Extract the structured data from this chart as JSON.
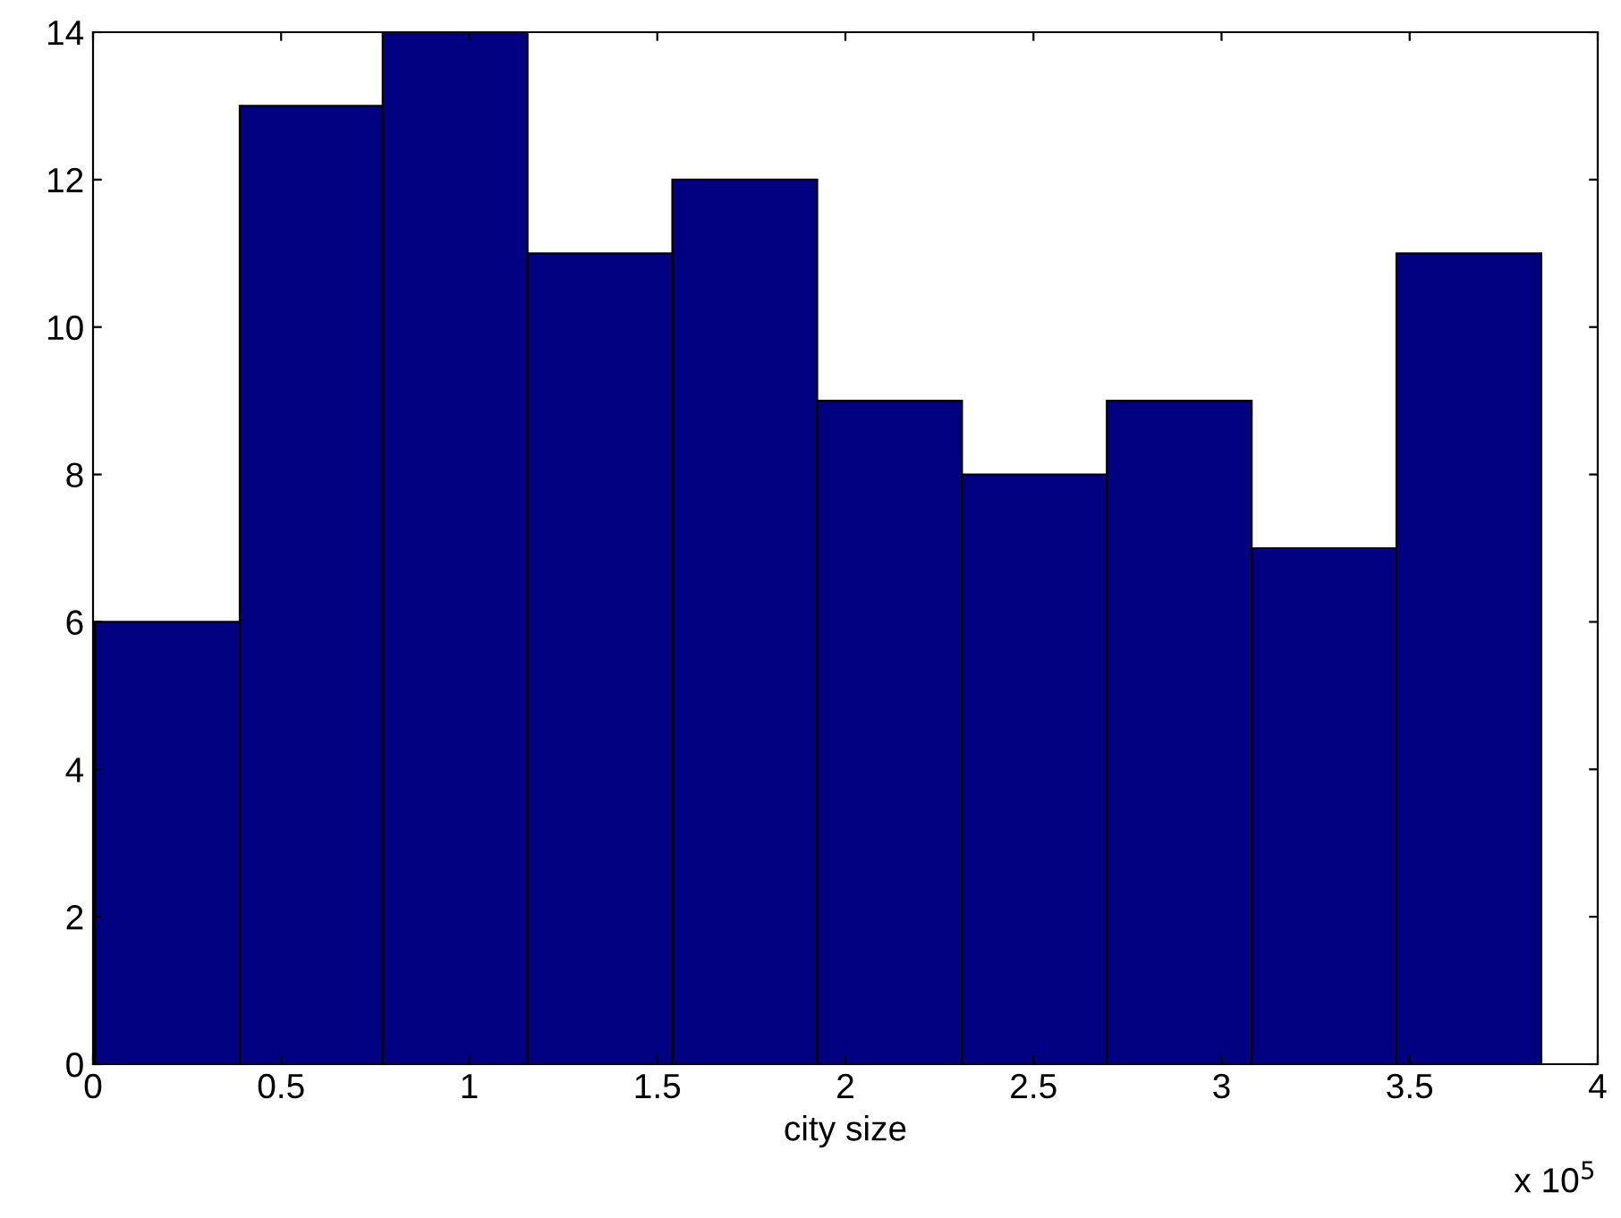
{
  "chart_data": {
    "type": "histogram",
    "xlabel": "city size",
    "bins": [
      0.005,
      0.39,
      0.77,
      1.155,
      1.54,
      1.925,
      2.31,
      2.695,
      3.08,
      3.465,
      3.85
    ],
    "values": [
      6,
      13,
      14,
      11,
      12,
      9,
      8,
      9,
      7,
      11
    ],
    "color": "#000080",
    "xlim": [
      0,
      4
    ],
    "xticks": [
      0,
      0.5,
      1,
      1.5,
      2,
      2.5,
      3,
      3.5,
      4
    ],
    "ylim": [
      0,
      14
    ],
    "yticks": [
      0,
      2,
      4,
      6,
      8,
      10,
      12,
      14
    ],
    "annotations": [
      "x 10$^{5}$"
    ],
    "grid": false
  }
}
